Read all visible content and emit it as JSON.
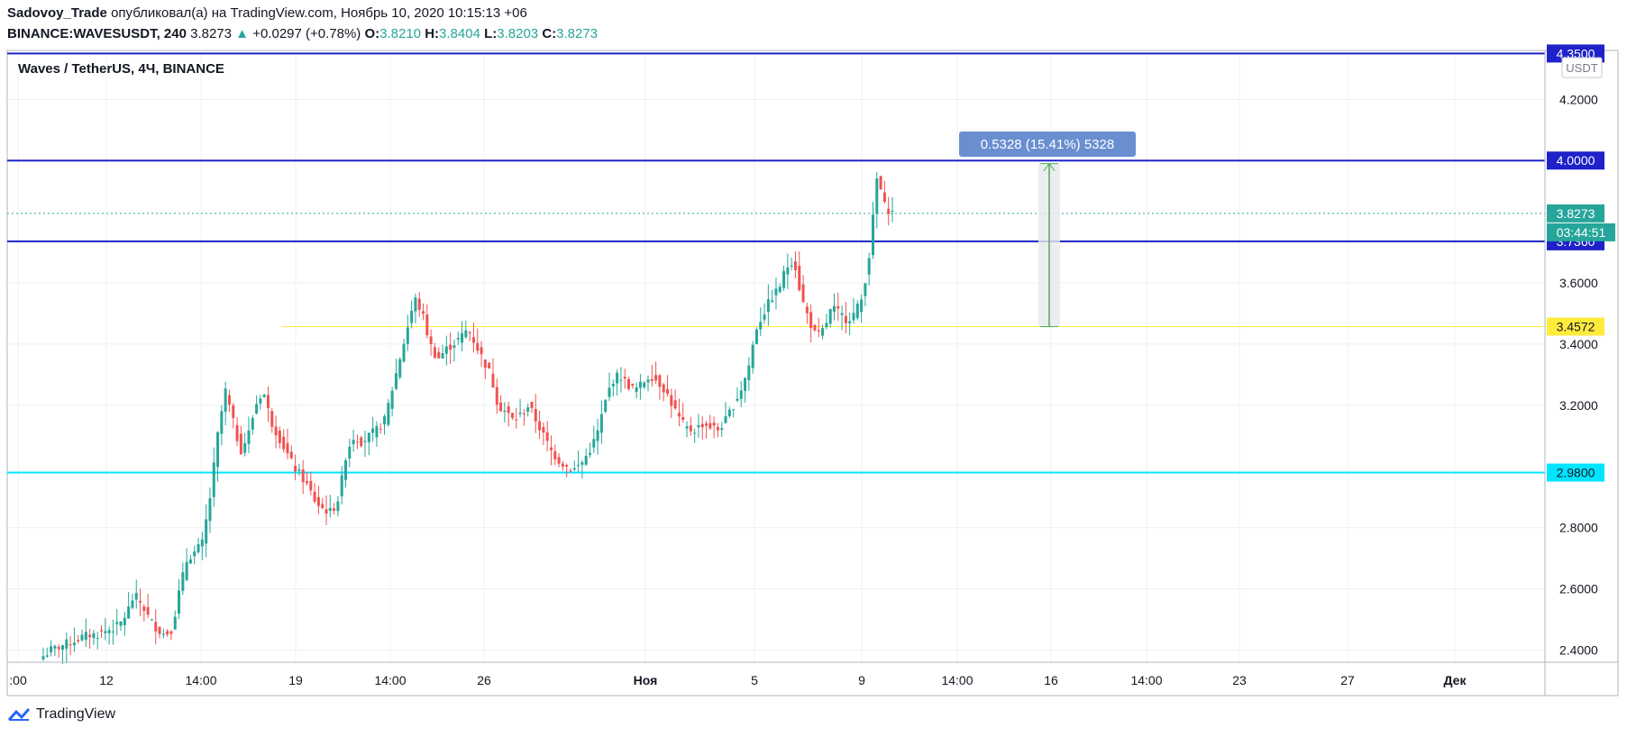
{
  "header": {
    "author": "Sadovoy_Trade",
    "published_text": "опубликовал(а) на TradingView.com, Ноябрь 10, 2020 10:15:13 +06",
    "symbol": "BINANCE:WAVESUSDT, 240",
    "last": "3.8273",
    "change_arrow": "▲",
    "change": "+0.0297 (+0.78%)",
    "o_label": "O:",
    "o": "3.8210",
    "h_label": "H:",
    "h": "3.8404",
    "l_label": "L:",
    "l": "3.8203",
    "c_label": "C:",
    "c": "3.8273"
  },
  "chart_title": "Waves / TetherUS, 4Ч, BINANCE",
  "currency_badge": "USDT",
  "footer": {
    "brand": "TradingView"
  },
  "colors": {
    "up": "#26a69a",
    "down": "#ef5350",
    "level_blue": "#1e22c8",
    "level_cyan": "#00e5ff",
    "level_yellow": "#ffeb3b",
    "measure_fill": "#6a8fd0",
    "measure_line": "#4caf50"
  },
  "chart_data": {
    "type": "candlestick",
    "title": "Waves / TetherUS, 4Ч, BINANCE",
    "y_axis": {
      "min": 2.36,
      "max": 4.36,
      "ticks": [
        "2.4000",
        "2.6000",
        "2.8000",
        "3.2000",
        "3.4000",
        "3.6000",
        "4.2000"
      ]
    },
    "x_ticks": [
      ":00",
      "12",
      "14:00",
      "19",
      "14:00",
      "26",
      "Ноя",
      "5",
      "9",
      "14:00",
      "16",
      "14:00",
      "23",
      "27",
      "Дек"
    ],
    "x_tick_bold": [
      "Ноя",
      "Дек"
    ],
    "horizontal_levels": [
      {
        "price": 4.35,
        "label": "4.3500",
        "color": "#1e22c8"
      },
      {
        "price": 4.0,
        "label": "4.0000",
        "color": "#1e22c8"
      },
      {
        "price": 3.736,
        "label": "3.7360",
        "color": "#1e22c8"
      },
      {
        "price": 3.4572,
        "label": "3.4572",
        "color": "#ffeb3b"
      },
      {
        "price": 2.98,
        "label": "2.9800",
        "color": "#00e5ff"
      }
    ],
    "current_price": {
      "price": 3.8273,
      "label": "3.8273",
      "countdown": "03:44:51"
    },
    "measurement": {
      "from": 3.4572,
      "to": 3.99,
      "label": "0.5328 (15.41%) 5328"
    },
    "price_path": [
      2.38,
      2.4,
      2.41,
      2.42,
      2.43,
      2.44,
      2.45,
      2.45,
      2.46,
      2.47,
      2.48,
      2.52,
      2.58,
      2.55,
      2.5,
      2.47,
      2.45,
      2.47,
      2.6,
      2.7,
      2.72,
      2.75,
      2.9,
      3.1,
      3.25,
      3.15,
      3.05,
      3.1,
      3.2,
      3.25,
      3.15,
      3.1,
      3.05,
      3.0,
      2.97,
      2.93,
      2.88,
      2.86,
      2.85,
      2.9,
      3.05,
      3.1,
      3.08,
      3.1,
      3.12,
      3.15,
      3.25,
      3.35,
      3.45,
      3.55,
      3.5,
      3.4,
      3.35,
      3.38,
      3.4,
      3.42,
      3.45,
      3.4,
      3.35,
      3.3,
      3.2,
      3.18,
      3.15,
      3.17,
      3.2,
      3.15,
      3.1,
      3.05,
      3.02,
      3.0,
      2.99,
      3.01,
      3.05,
      3.1,
      3.2,
      3.28,
      3.3,
      3.27,
      3.25,
      3.27,
      3.3,
      3.28,
      3.25,
      3.2,
      3.15,
      3.12,
      3.12,
      3.14,
      3.13,
      3.12,
      3.15,
      3.2,
      3.25,
      3.32,
      3.45,
      3.5,
      3.55,
      3.58,
      3.65,
      3.68,
      3.55,
      3.48,
      3.42,
      3.45,
      3.52,
      3.5,
      3.48,
      3.5,
      3.55,
      3.7,
      3.95,
      3.85,
      3.83
    ]
  }
}
